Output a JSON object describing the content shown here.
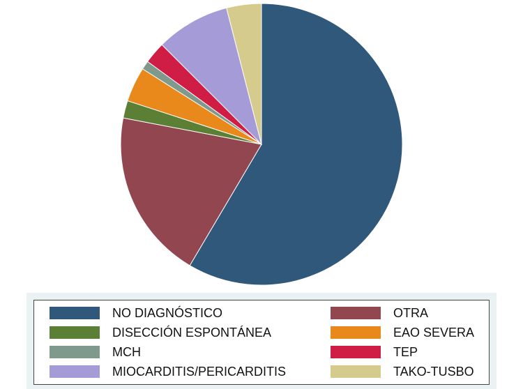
{
  "chart_data": {
    "type": "pie",
    "title": "",
    "start": "top",
    "direction": "clockwise",
    "slices": [
      {
        "label": "NO DIAGNÓSTICO",
        "value": 58.5,
        "color": "#30587a"
      },
      {
        "label": "OTRA",
        "value": 19.5,
        "color": "#914650"
      },
      {
        "label": "DISECCIÓN ESPONTÁNEA",
        "value": 2.0,
        "color": "#5b7f34"
      },
      {
        "label": "EAO SEVERA",
        "value": 4.0,
        "color": "#e9891b"
      },
      {
        "label": "MCH",
        "value": 1.0,
        "color": "#7f9a8d"
      },
      {
        "label": "TEP",
        "value": 2.5,
        "color": "#cf1d46"
      },
      {
        "label": "MIOCARDITIS/PERICARDITIS",
        "value": 8.5,
        "color": "#a59bd6"
      },
      {
        "label": "TAKO-TUSBO",
        "value": 4.0,
        "color": "#d4cb8c"
      }
    ],
    "legend": {
      "placement": "bottom",
      "columns": 2,
      "entries_order": [
        "NO DIAGNÓSTICO",
        "OTRA",
        "DISECCIÓN ESPONTÁNEA",
        "EAO SEVERA",
        "MCH",
        "TEP",
        "MIOCARDITIS/PERICARDITIS",
        "TAKO-TUSBO"
      ]
    }
  }
}
